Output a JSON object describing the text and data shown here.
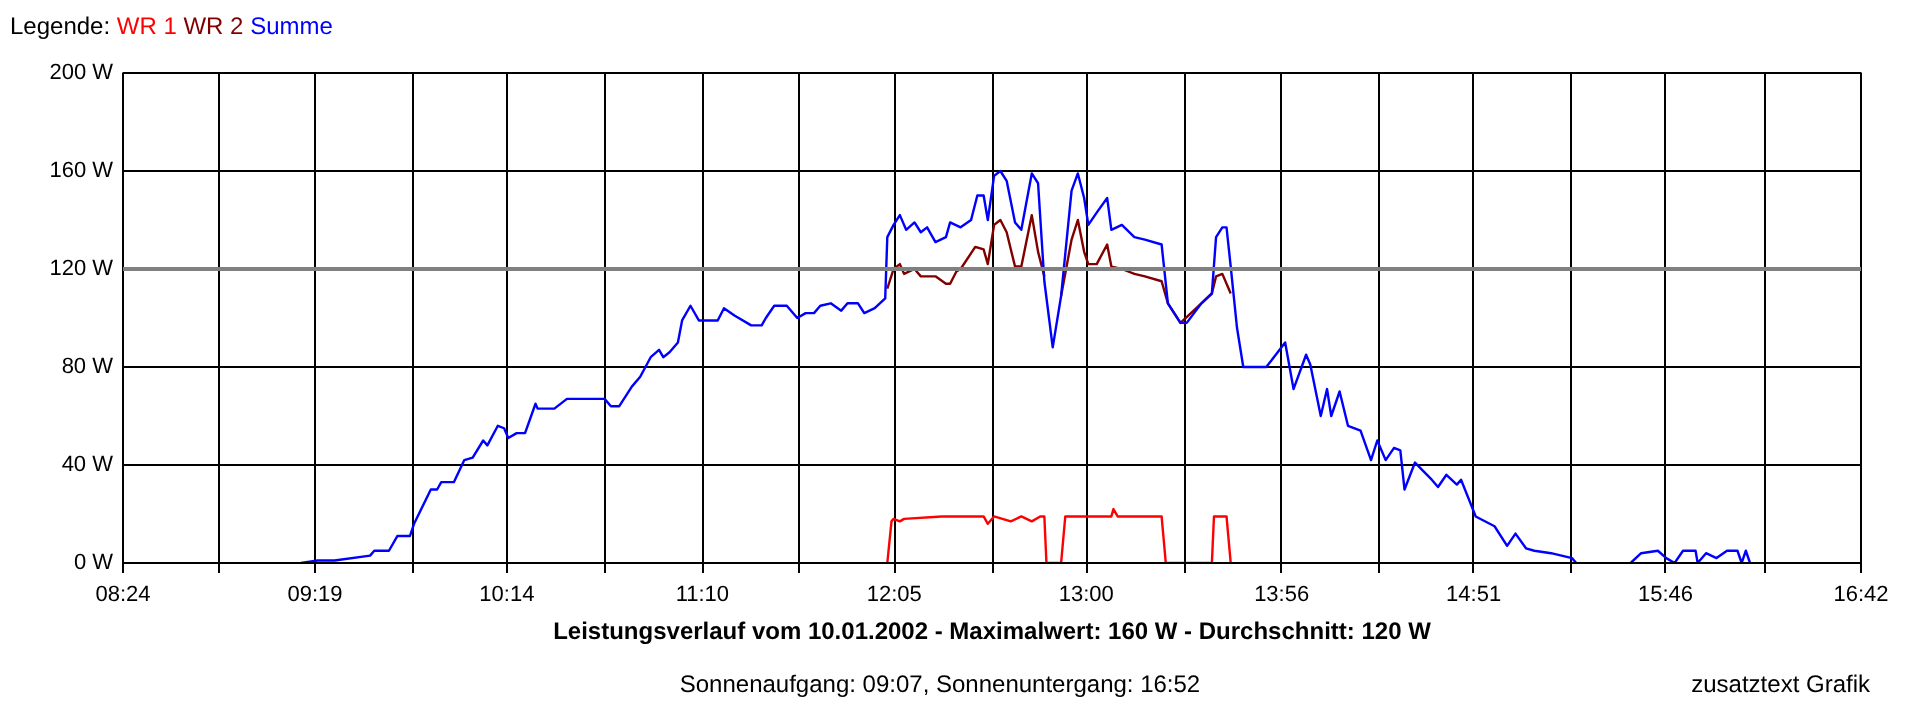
{
  "chart_data": {
    "type": "line",
    "title": "Leistungsverlauf vom 10.01.2002 - Maximalwert: 160 W - Durchschnitt: 120 W",
    "subtitle": "Sonnenaufgang: 09:07, Sonnenuntergang: 16:52",
    "annotations": [
      "zusatztext Grafik"
    ],
    "legend_title": "Legende:",
    "legend": "top left",
    "grid": true,
    "xlim": [
      8.4,
      16.7
    ],
    "xticks": [
      {
        "value": 8.4,
        "label": "08:24"
      },
      {
        "value": 8.8611,
        "label": null
      },
      {
        "value": 9.3167,
        "label": "09:19"
      },
      {
        "value": 9.7833,
        "label": null
      },
      {
        "value": 10.2333,
        "label": "10:14"
      },
      {
        "value": 10.7056,
        "label": null
      },
      {
        "value": 11.1667,
        "label": "11:10"
      },
      {
        "value": 11.6278,
        "label": null
      },
      {
        "value": 12.0833,
        "label": "12:05"
      },
      {
        "value": 12.55,
        "label": null
      },
      {
        "value": 13.0,
        "label": "13:00"
      },
      {
        "value": 13.4722,
        "label": null
      },
      {
        "value": 13.9333,
        "label": "13:56"
      },
      {
        "value": 14.3944,
        "label": null
      },
      {
        "value": 14.85,
        "label": "14:51"
      },
      {
        "value": 15.3167,
        "label": null
      },
      {
        "value": 15.7667,
        "label": "15:46"
      },
      {
        "value": 16.2389,
        "label": null
      },
      {
        "value": 16.7,
        "label": "16:42"
      }
    ],
    "ylim": [
      0,
      200
    ],
    "yticks": [
      {
        "value": 0,
        "label": "0 W"
      },
      {
        "value": 40,
        "label": "40 W"
      },
      {
        "value": 80,
        "label": "80 W"
      },
      {
        "value": 120,
        "label": "120 W"
      },
      {
        "value": 160,
        "label": "160 W"
      },
      {
        "value": 200,
        "label": "200 W"
      }
    ],
    "ref_lines": [
      {
        "axis": "y",
        "value": 120,
        "color": "#808080"
      }
    ],
    "series": [
      {
        "name": "WR 1",
        "color": "#ff0000",
        "x": [
          12.05,
          12.07,
          12.08,
          12.11,
          12.13,
          12.31,
          12.51,
          12.53,
          12.56,
          12.64,
          12.69,
          12.74,
          12.78,
          12.8,
          12.81,
          12.88,
          12.9,
          13.12,
          13.13,
          13.15,
          13.36,
          13.38,
          13.6,
          13.61,
          13.67,
          13.69
        ],
        "values": [
          0,
          17,
          18,
          17,
          18,
          19,
          19,
          16,
          19,
          17,
          19,
          17,
          19,
          19,
          0,
          0,
          19,
          19,
          22,
          19,
          19,
          0,
          0,
          19,
          19,
          0
        ]
      },
      {
        "name": "WR 2",
        "color": "#800000",
        "x": [
          12.05,
          12.08,
          12.11,
          12.13,
          12.18,
          12.21,
          12.28,
          12.33,
          12.35,
          12.38,
          12.4,
          12.47,
          12.51,
          12.53,
          12.56,
          12.59,
          12.62,
          12.66,
          12.69,
          12.74,
          12.77,
          12.8,
          12.84,
          12.88,
          12.93,
          12.96,
          12.99,
          13.01,
          13.05,
          13.1,
          13.12,
          13.17,
          13.23,
          13.28,
          13.36,
          13.39,
          13.45,
          13.55,
          13.6,
          13.62,
          13.65,
          13.69
        ],
        "values": [
          112,
          120,
          122,
          118,
          120,
          117,
          117,
          114,
          114,
          119,
          120,
          129,
          128,
          122,
          138,
          140,
          135,
          121,
          121,
          142,
          127,
          117,
          null,
          109,
          132,
          140,
          127,
          122,
          122,
          130,
          121,
          120,
          118,
          117,
          115,
          106,
          98,
          106,
          110,
          117,
          118,
          110
        ]
      },
      {
        "name": "Summe",
        "color": "#0000ff",
        "x": [
          9.25,
          9.33,
          9.41,
          9.58,
          9.6,
          9.67,
          9.71,
          9.77,
          9.79,
          9.87,
          9.9,
          9.92,
          9.98,
          10.03,
          10.07,
          10.12,
          10.14,
          10.19,
          10.22,
          10.24,
          10.28,
          10.32,
          10.37,
          10.38,
          10.46,
          10.52,
          10.7,
          10.73,
          10.77,
          10.83,
          10.87,
          10.92,
          10.96,
          10.98,
          11.01,
          11.05,
          11.07,
          11.11,
          11.15,
          11.24,
          11.27,
          11.32,
          11.4,
          11.45,
          11.47,
          11.51,
          11.57,
          11.62,
          11.66,
          11.7,
          11.73,
          11.78,
          11.83,
          11.86,
          11.91,
          11.94,
          11.99,
          12.04,
          12.05,
          12.08,
          12.11,
          12.14,
          12.18,
          12.21,
          12.24,
          12.28,
          12.33,
          12.35,
          12.4,
          12.45,
          12.48,
          12.51,
          12.53,
          12.56,
          12.59,
          12.62,
          12.66,
          12.69,
          12.74,
          12.77,
          12.8,
          12.84,
          12.88,
          12.93,
          12.96,
          12.99,
          13.01,
          13.05,
          13.1,
          13.12,
          13.17,
          13.23,
          13.28,
          13.36,
          13.39,
          13.45,
          13.48,
          13.55,
          13.6,
          13.62,
          13.65,
          13.67,
          13.69,
          13.72,
          13.75,
          13.86,
          13.95,
          13.99,
          14.05,
          14.07,
          14.12,
          14.15,
          14.17,
          14.21,
          14.25,
          14.31,
          14.36,
          14.39,
          14.43,
          14.47,
          14.5,
          14.52,
          14.57,
          14.65,
          14.68,
          14.72,
          14.77,
          14.79,
          14.86,
          14.95,
          15.01,
          15.05,
          15.1,
          15.14,
          15.22,
          15.32,
          15.34,
          15.41,
          15.6,
          15.65,
          15.73,
          15.77,
          15.81,
          15.85,
          15.91,
          15.92,
          15.96,
          16.01,
          16.06,
          16.11,
          16.13,
          16.15,
          16.17
        ],
        "values": [
          0,
          1,
          1,
          3,
          5,
          5,
          11,
          11,
          16,
          30,
          30,
          33,
          33,
          42,
          43,
          50,
          48,
          56,
          55,
          51,
          53,
          53,
          65,
          63,
          63,
          67,
          67,
          64,
          64,
          72,
          76,
          84,
          87,
          84,
          86,
          90,
          99,
          105,
          99,
          99,
          104,
          101,
          97,
          97,
          100,
          105,
          105,
          100,
          102,
          102,
          105,
          106,
          103,
          106,
          106,
          102,
          104,
          108,
          133,
          138,
          142,
          136,
          139,
          135,
          137,
          131,
          133,
          139,
          137,
          140,
          150,
          150,
          140,
          158,
          160,
          156,
          139,
          136,
          159,
          155,
          115,
          88,
          109,
          152,
          159,
          149,
          138,
          143,
          149,
          136,
          138,
          133,
          132,
          130,
          106,
          98,
          98,
          106,
          110,
          133,
          137,
          137,
          121,
          96,
          80,
          80,
          90,
          71,
          85,
          81,
          60,
          71,
          60,
          70,
          56,
          54,
          42,
          50,
          42,
          47,
          46,
          30,
          41,
          34,
          31,
          36,
          32,
          34,
          19,
          15,
          7,
          12,
          6,
          5,
          4,
          2,
          0,
          null,
          0,
          4,
          5,
          2,
          0,
          5,
          5,
          0,
          4,
          2,
          5,
          5,
          0,
          5,
          0
        ]
      }
    ]
  }
}
